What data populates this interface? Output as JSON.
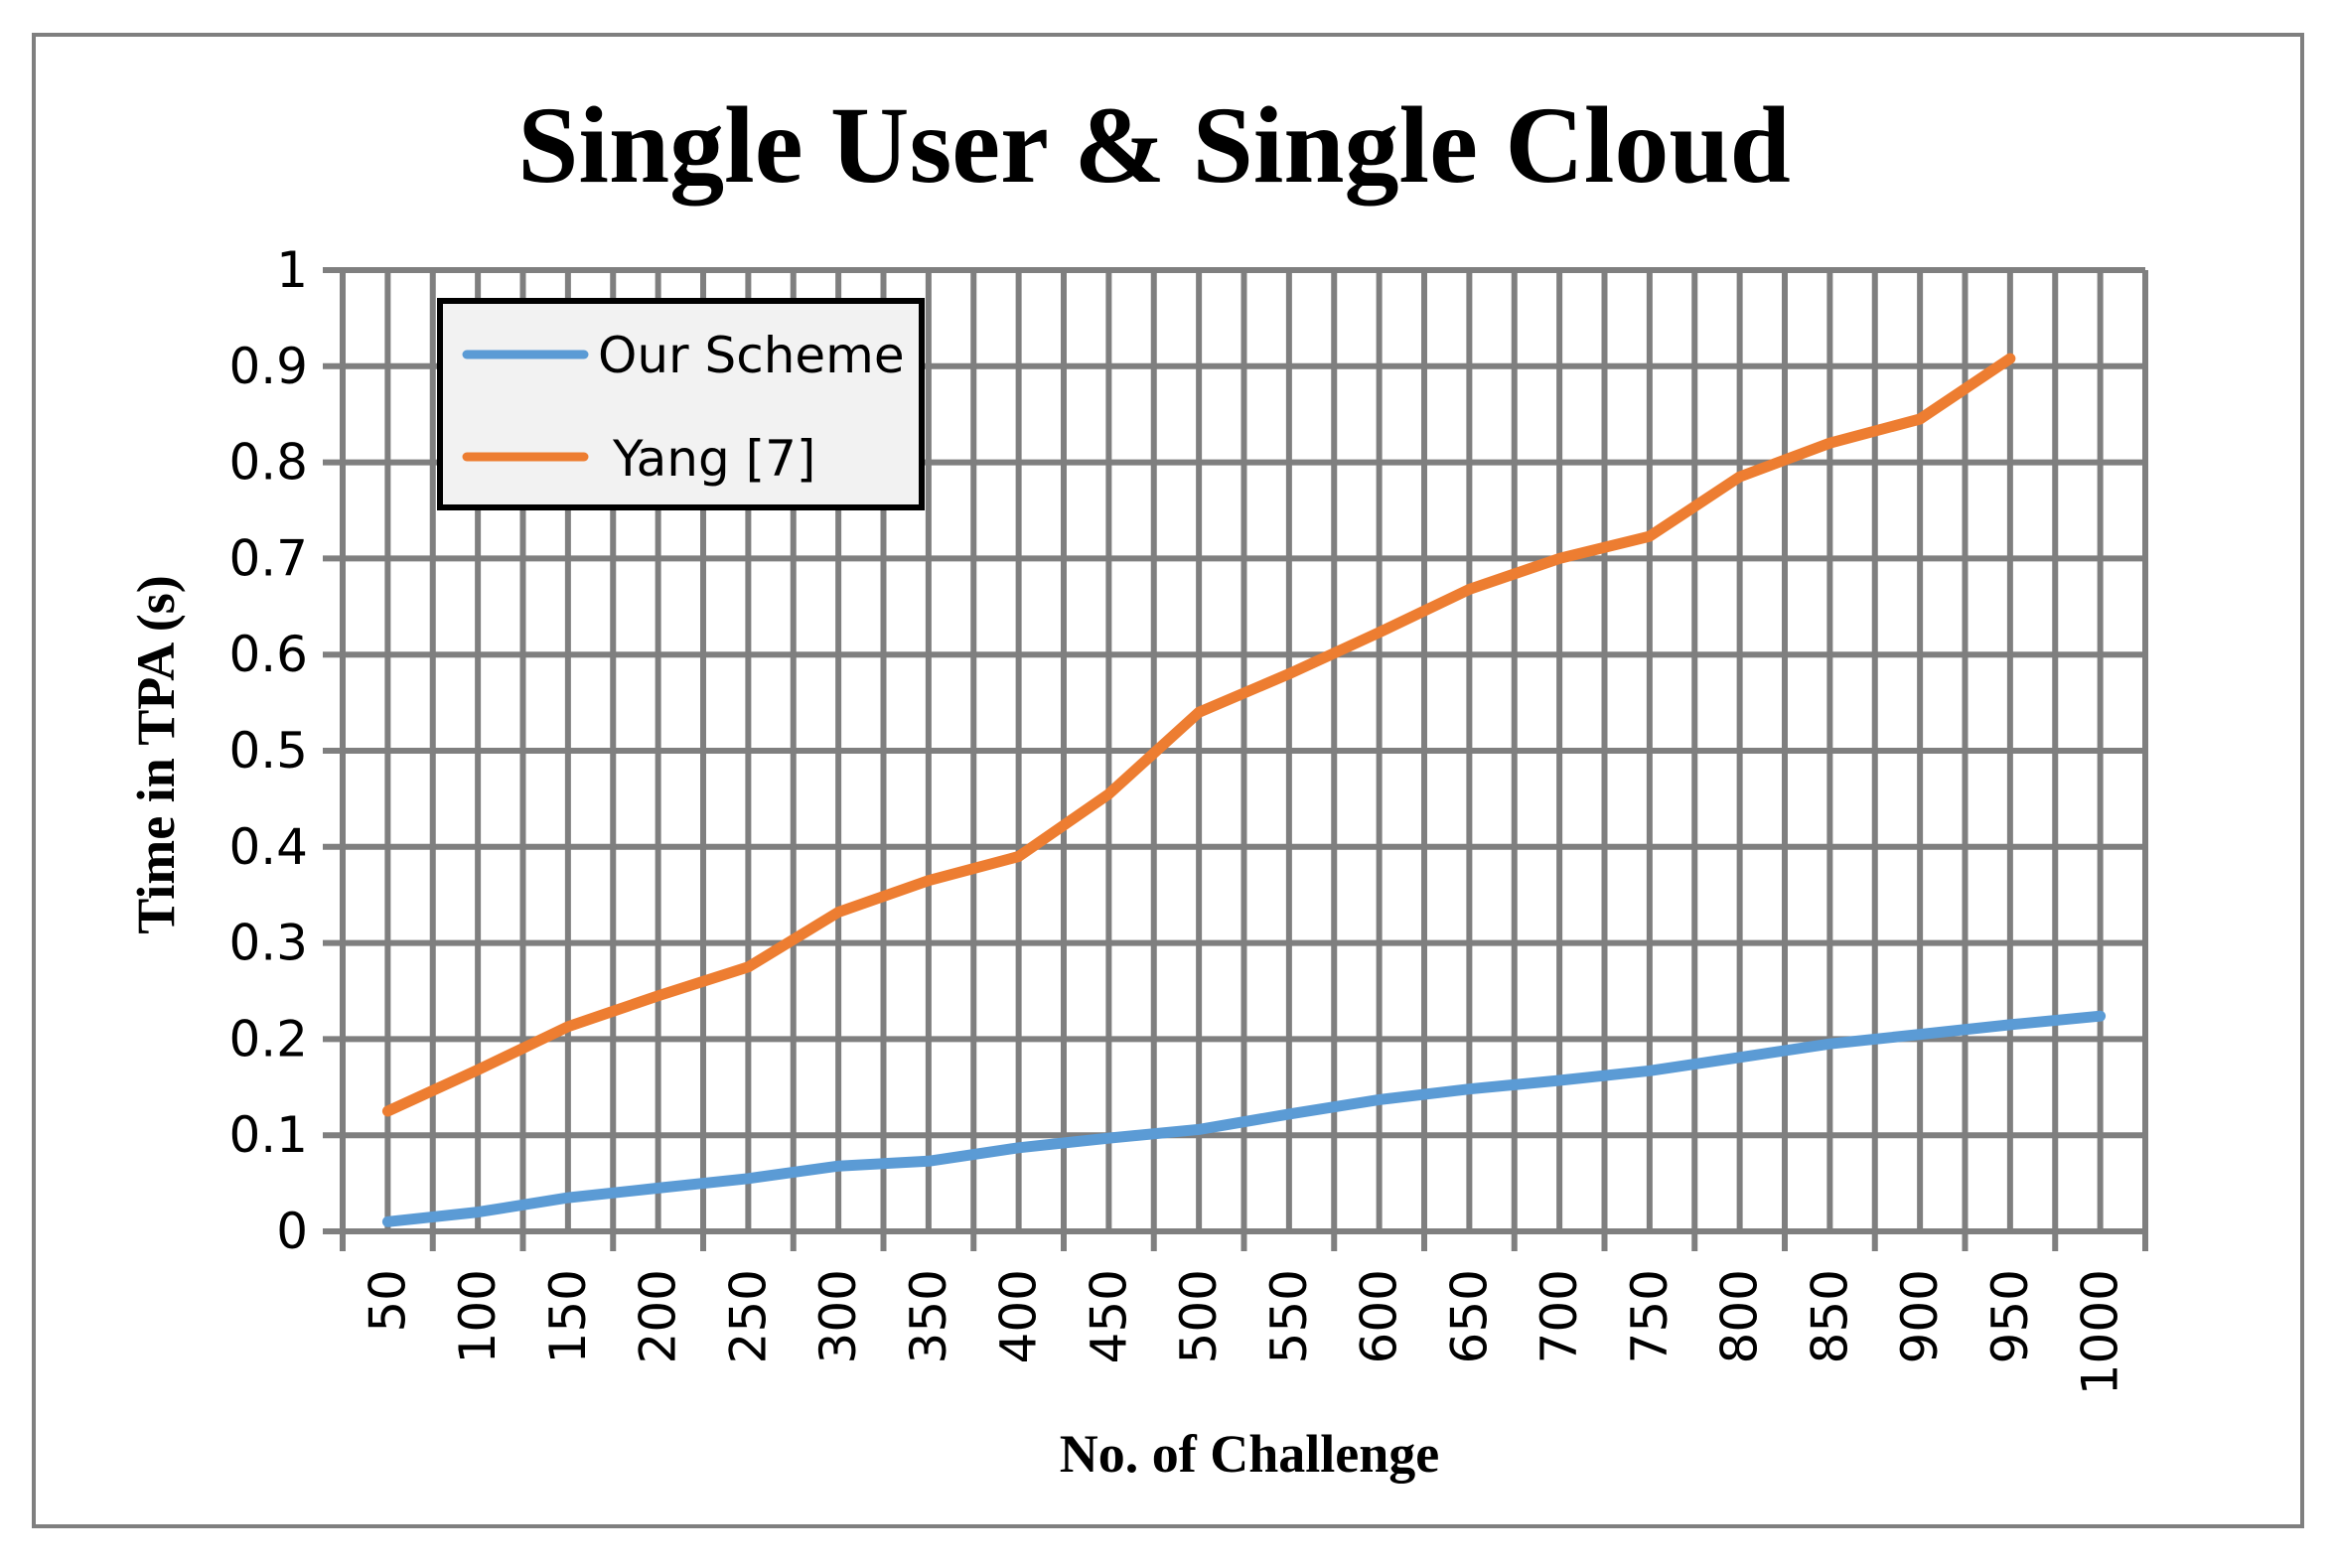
{
  "chart_data": {
    "type": "line",
    "title": "Single User & Single Cloud",
    "xlabel": "No. of Challenge",
    "ylabel": "Time in TPA (s)",
    "ylim": [
      0,
      1
    ],
    "yticks": [
      "0",
      "0.1",
      "0.2",
      "0.3",
      "0.4",
      "0.5",
      "0.6",
      "0.7",
      "0.8",
      "0.9",
      "1"
    ],
    "categories": [
      "50",
      "100",
      "150",
      "200",
      "250",
      "300",
      "350",
      "400",
      "450",
      "500",
      "550",
      "600",
      "650",
      "700",
      "750",
      "800",
      "850",
      "900",
      "950",
      "1000"
    ],
    "grid": true,
    "legend_position": "top-left",
    "series": [
      {
        "name": "Our Scheme",
        "color": "#5b9bd5",
        "values": [
          0.01,
          0.02,
          0.035,
          0.045,
          0.055,
          0.068,
          0.073,
          0.087,
          0.097,
          0.106,
          0.122,
          0.137,
          0.148,
          0.157,
          0.167,
          0.181,
          0.195,
          0.205,
          0.215,
          0.224
        ]
      },
      {
        "name": "Yang [7]",
        "color": "#ed7d31",
        "values": [
          0.125,
          0.168,
          0.213,
          0.245,
          0.275,
          0.332,
          0.365,
          0.39,
          0.455,
          0.54,
          0.58,
          0.623,
          0.668,
          0.7,
          0.723,
          0.785,
          0.82,
          0.845,
          0.908,
          null
        ]
      }
    ]
  }
}
